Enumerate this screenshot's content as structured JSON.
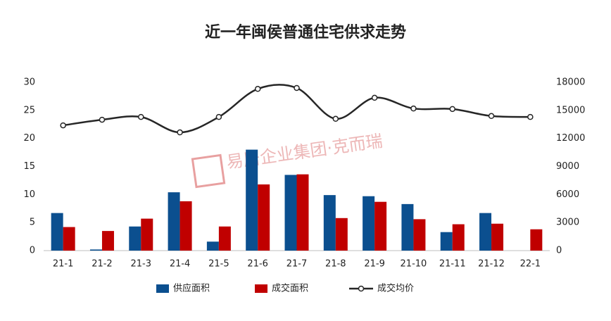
{
  "chart_data": {
    "type": "bar-line",
    "title": "近一年闽侯普通住宅供求走势",
    "annotation": "易居企业集团·克而瑞",
    "categories": [
      "21-1",
      "21-2",
      "21-3",
      "21-4",
      "21-5",
      "21-6",
      "21-7",
      "21-8",
      "21-9",
      "21-10",
      "21-11",
      "21-12",
      "22-1"
    ],
    "series": [
      {
        "name": "供应面积",
        "color": "#0b4f8f",
        "kind": "bar",
        "values": [
          6.7,
          0.2,
          4.3,
          10.4,
          1.6,
          18,
          13.5,
          9.9,
          9.7,
          8.3,
          3.3,
          6.7,
          null
        ]
      },
      {
        "name": "成交面积",
        "color": "#c00000",
        "kind": "bar",
        "values": [
          4.2,
          3.5,
          5.7,
          8.8,
          4.3,
          11.8,
          13.6,
          5.8,
          8.7,
          5.6,
          4.7,
          4.8,
          3.8
        ]
      },
      {
        "name": "成交均价",
        "color": "#262626",
        "kind": "line",
        "axis": "y2",
        "values": [
          13400,
          14000,
          14300,
          12650,
          14300,
          17300,
          17400,
          14100,
          16350,
          15200,
          15150,
          14400,
          14300
        ]
      }
    ],
    "ylim": [
      0,
      30
    ],
    "yticks": [
      0,
      5,
      10,
      15,
      20,
      25,
      30
    ],
    "y2lim": [
      0,
      18000
    ],
    "y2ticks": [
      0,
      3000,
      6000,
      9000,
      12000,
      15000,
      18000
    ],
    "grid": false,
    "legend": "bottom"
  }
}
